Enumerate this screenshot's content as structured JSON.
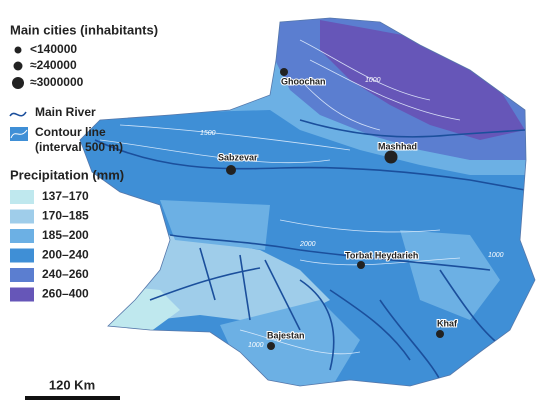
{
  "legend": {
    "cities_title": "Main cities (inhabitants)",
    "city_sizes": [
      "<140000",
      "≈240000",
      "≈3000000"
    ],
    "river": "Main River",
    "contour": [
      "Contour line",
      "(interval 500 m)"
    ],
    "precipitation_title": "Precipitation (mm)",
    "precipitation_classes": [
      {
        "label": "137–170",
        "color": "#bfe8ee"
      },
      {
        "label": "170–185",
        "color": "#9fcdea"
      },
      {
        "label": "185–200",
        "color": "#6cb0e4"
      },
      {
        "label": "200–240",
        "color": "#3f8fd6"
      },
      {
        "label": "240–260",
        "color": "#5b7ed0"
      },
      {
        "label": "260–400",
        "color": "#6656b8"
      }
    ]
  },
  "cities": [
    "Ghoochan",
    "Mashhad",
    "Sabzevar",
    "Torbat Heydarieh",
    "Bajestan",
    "Khaf"
  ],
  "contour_labels": [
    "1500",
    "2000",
    "1000",
    "1000",
    "1000"
  ],
  "scale_bar": "120 Km"
}
